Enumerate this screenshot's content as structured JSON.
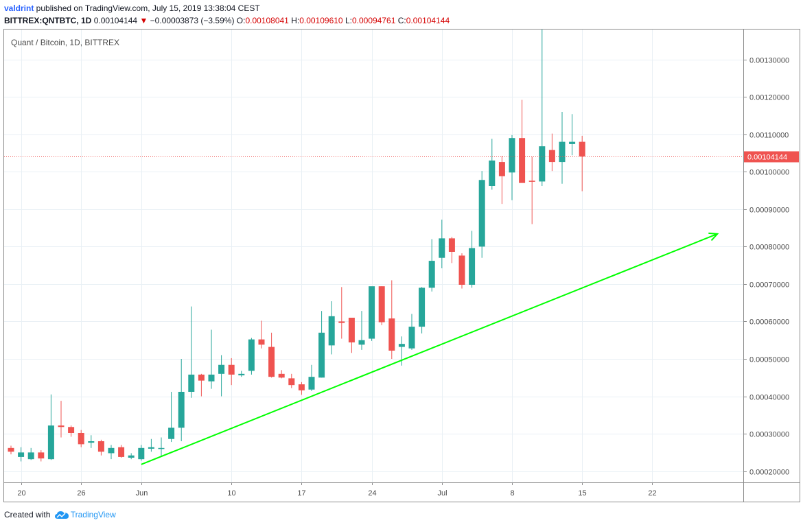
{
  "header": {
    "author": "valdrint",
    "published_text": " published on TradingView.com, July 15, 2019 13:38:04 CEST",
    "symbol_line": "BITTREX:QNTBTC, 1D",
    "last": "0.00104144",
    "change": "−0.00003873 (−3.59%)",
    "o_label": "O:",
    "o_value": "0.00108041",
    "h_label": "H:",
    "h_value": "0.00109610",
    "l_label": "L:",
    "l_value": "0.00094761",
    "c_label": "C:",
    "c_value": "0.00104144"
  },
  "footer": {
    "prefix": "Created with",
    "brand": "TradingView"
  },
  "colors": {
    "up": "#26a69a",
    "down": "#ef5350",
    "trendline": "#00ff00",
    "price_line": "#ef5350",
    "grid": "#e9f0f5",
    "axis_text": "#4a4a4a"
  },
  "chart_data": {
    "type": "candlestick",
    "title": "Quant / Bitcoin, 1D, BITTREX",
    "ylim": [
      0.00017,
      0.00138
    ],
    "y_ticks": [
      "0.00020000",
      "0.00030000",
      "0.00040000",
      "0.00050000",
      "0.00060000",
      "0.00070000",
      "0.00080000",
      "0.00090000",
      "0.00100000",
      "0.00110000",
      "0.00120000",
      "0.00130000"
    ],
    "y_tick_values": [
      0.0002,
      0.0003,
      0.0004,
      0.0005,
      0.0006,
      0.0007,
      0.0008,
      0.0009,
      0.001,
      0.0011,
      0.0012,
      0.0013
    ],
    "x_ticks": [
      {
        "label": "20",
        "index": 1
      },
      {
        "label": "26",
        "index": 7
      },
      {
        "label": "Jun",
        "index": 13
      },
      {
        "label": "10",
        "index": 22
      },
      {
        "label": "17",
        "index": 29
      },
      {
        "label": "24",
        "index": 36
      },
      {
        "label": "Jul",
        "index": 43
      },
      {
        "label": "8",
        "index": 50
      },
      {
        "label": "15",
        "index": 57
      },
      {
        "label": "22",
        "index": 64
      }
    ],
    "last_price": 0.00104144,
    "last_price_label": "0.00104144",
    "candles": [
      {
        "o": 0.000262,
        "h": 0.000268,
        "l": 0.000245,
        "c": 0.000252
      },
      {
        "o": 0.000238,
        "h": 0.000264,
        "l": 0.000226,
        "c": 0.00025
      },
      {
        "o": 0.000232,
        "h": 0.000262,
        "l": 0.00023,
        "c": 0.00025
      },
      {
        "o": 0.00025,
        "h": 0.000256,
        "l": 0.000226,
        "c": 0.000234
      },
      {
        "o": 0.000232,
        "h": 0.000405,
        "l": 0.00023,
        "c": 0.000322
      },
      {
        "o": 0.000322,
        "h": 0.000388,
        "l": 0.00029,
        "c": 0.000318
      },
      {
        "o": 0.000318,
        "h": 0.000322,
        "l": 0.000292,
        "c": 0.000302
      },
      {
        "o": 0.000302,
        "h": 0.00031,
        "l": 0.000264,
        "c": 0.000272
      },
      {
        "o": 0.000276,
        "h": 0.000296,
        "l": 0.000262,
        "c": 0.00028
      },
      {
        "o": 0.00028,
        "h": 0.000284,
        "l": 0.000242,
        "c": 0.000252
      },
      {
        "o": 0.000248,
        "h": 0.00027,
        "l": 0.000232,
        "c": 0.000262
      },
      {
        "o": 0.000264,
        "h": 0.00027,
        "l": 0.000236,
        "c": 0.000238
      },
      {
        "o": 0.000236,
        "h": 0.000248,
        "l": 0.000232,
        "c": 0.000242
      },
      {
        "o": 0.000232,
        "h": 0.00027,
        "l": 0.000228,
        "c": 0.000262
      },
      {
        "o": 0.00026,
        "h": 0.000286,
        "l": 0.000252,
        "c": 0.000264
      },
      {
        "o": 0.000262,
        "h": 0.00029,
        "l": 0.00024,
        "c": 0.000262
      },
      {
        "o": 0.000286,
        "h": 0.000412,
        "l": 0.000278,
        "c": 0.000316
      },
      {
        "o": 0.000316,
        "h": 0.0005,
        "l": 0.00028,
        "c": 0.000412
      },
      {
        "o": 0.000412,
        "h": 0.00064,
        "l": 0.000396,
        "c": 0.000458
      },
      {
        "o": 0.000458,
        "h": 0.00046,
        "l": 0.0004,
        "c": 0.000442
      },
      {
        "o": 0.00044,
        "h": 0.000578,
        "l": 0.00042,
        "c": 0.000458
      },
      {
        "o": 0.00046,
        "h": 0.00051,
        "l": 0.0004,
        "c": 0.000484
      },
      {
        "o": 0.000484,
        "h": 0.000502,
        "l": 0.00043,
        "c": 0.000458
      },
      {
        "o": 0.000456,
        "h": 0.000468,
        "l": 0.000452,
        "c": 0.00046
      },
      {
        "o": 0.000468,
        "h": 0.000556,
        "l": 0.000458,
        "c": 0.000552
      },
      {
        "o": 0.000552,
        "h": 0.000602,
        "l": 0.000528,
        "c": 0.000538
      },
      {
        "o": 0.000532,
        "h": 0.00057,
        "l": 0.00045,
        "c": 0.000452
      },
      {
        "o": 0.00046,
        "h": 0.00047,
        "l": 0.000448,
        "c": 0.00045
      },
      {
        "o": 0.000448,
        "h": 0.00046,
        "l": 0.000422,
        "c": 0.00043
      },
      {
        "o": 0.000432,
        "h": 0.000438,
        "l": 0.000404,
        "c": 0.000416
      },
      {
        "o": 0.000418,
        "h": 0.000484,
        "l": 0.000414,
        "c": 0.000452
      },
      {
        "o": 0.00045,
        "h": 0.000628,
        "l": 0.00045,
        "c": 0.00057
      },
      {
        "o": 0.000536,
        "h": 0.000654,
        "l": 0.000512,
        "c": 0.000614
      },
      {
        "o": 0.0006,
        "h": 0.000692,
        "l": 0.000554,
        "c": 0.000596
      },
      {
        "o": 0.00061,
        "h": 0.00061,
        "l": 0.000516,
        "c": 0.000544
      },
      {
        "o": 0.000538,
        "h": 0.000628,
        "l": 0.000524,
        "c": 0.00055
      },
      {
        "o": 0.000554,
        "h": 0.000692,
        "l": 0.000548,
        "c": 0.000694
      },
      {
        "o": 0.000694,
        "h": 0.000694,
        "l": 0.00059,
        "c": 0.000598
      },
      {
        "o": 0.000608,
        "h": 0.00071,
        "l": 0.0005,
        "c": 0.000522
      },
      {
        "o": 0.000532,
        "h": 0.00056,
        "l": 0.000482,
        "c": 0.00054
      },
      {
        "o": 0.000528,
        "h": 0.00062,
        "l": 0.000524,
        "c": 0.000586
      },
      {
        "o": 0.000586,
        "h": 0.000692,
        "l": 0.000568,
        "c": 0.00069
      },
      {
        "o": 0.00069,
        "h": 0.00082,
        "l": 0.00068,
        "c": 0.000762
      },
      {
        "o": 0.00077,
        "h": 0.000872,
        "l": 0.000742,
        "c": 0.000822
      },
      {
        "o": 0.000822,
        "h": 0.000826,
        "l": 0.000756,
        "c": 0.000786
      },
      {
        "o": 0.000776,
        "h": 0.000782,
        "l": 0.000688,
        "c": 0.000698
      },
      {
        "o": 0.000698,
        "h": 0.000842,
        "l": 0.00069,
        "c": 0.000796
      },
      {
        "o": 0.0008,
        "h": 0.001002,
        "l": 0.00077,
        "c": 0.000978
      },
      {
        "o": 0.000962,
        "h": 0.001088,
        "l": 0.000952,
        "c": 0.00103
      },
      {
        "o": 0.001026,
        "h": 0.001042,
        "l": 0.000914,
        "c": 0.000988
      },
      {
        "o": 0.000998,
        "h": 0.001098,
        "l": 0.000924,
        "c": 0.00109
      },
      {
        "o": 0.00109,
        "h": 0.001192,
        "l": 0.000976,
        "c": 0.00097
      },
      {
        "o": 0.000976,
        "h": 0.00104,
        "l": 0.00086,
        "c": 0.000974
      },
      {
        "o": 0.000974,
        "h": 0.001386,
        "l": 0.000962,
        "c": 0.001068
      },
      {
        "o": 0.001058,
        "h": 0.001102,
        "l": 0.001002,
        "c": 0.001026
      },
      {
        "o": 0.001026,
        "h": 0.00116,
        "l": 0.000968,
        "c": 0.00108
      },
      {
        "o": 0.001074,
        "h": 0.001154,
        "l": 0.001044,
        "c": 0.00108
      },
      {
        "o": 0.00108,
        "h": 0.001096,
        "l": 0.000948,
        "c": 0.001041
      }
    ],
    "trendline": {
      "start": {
        "index": 13,
        "price": 0.000218
      },
      "end": {
        "index": 70.5,
        "price": 0.000834
      }
    }
  }
}
